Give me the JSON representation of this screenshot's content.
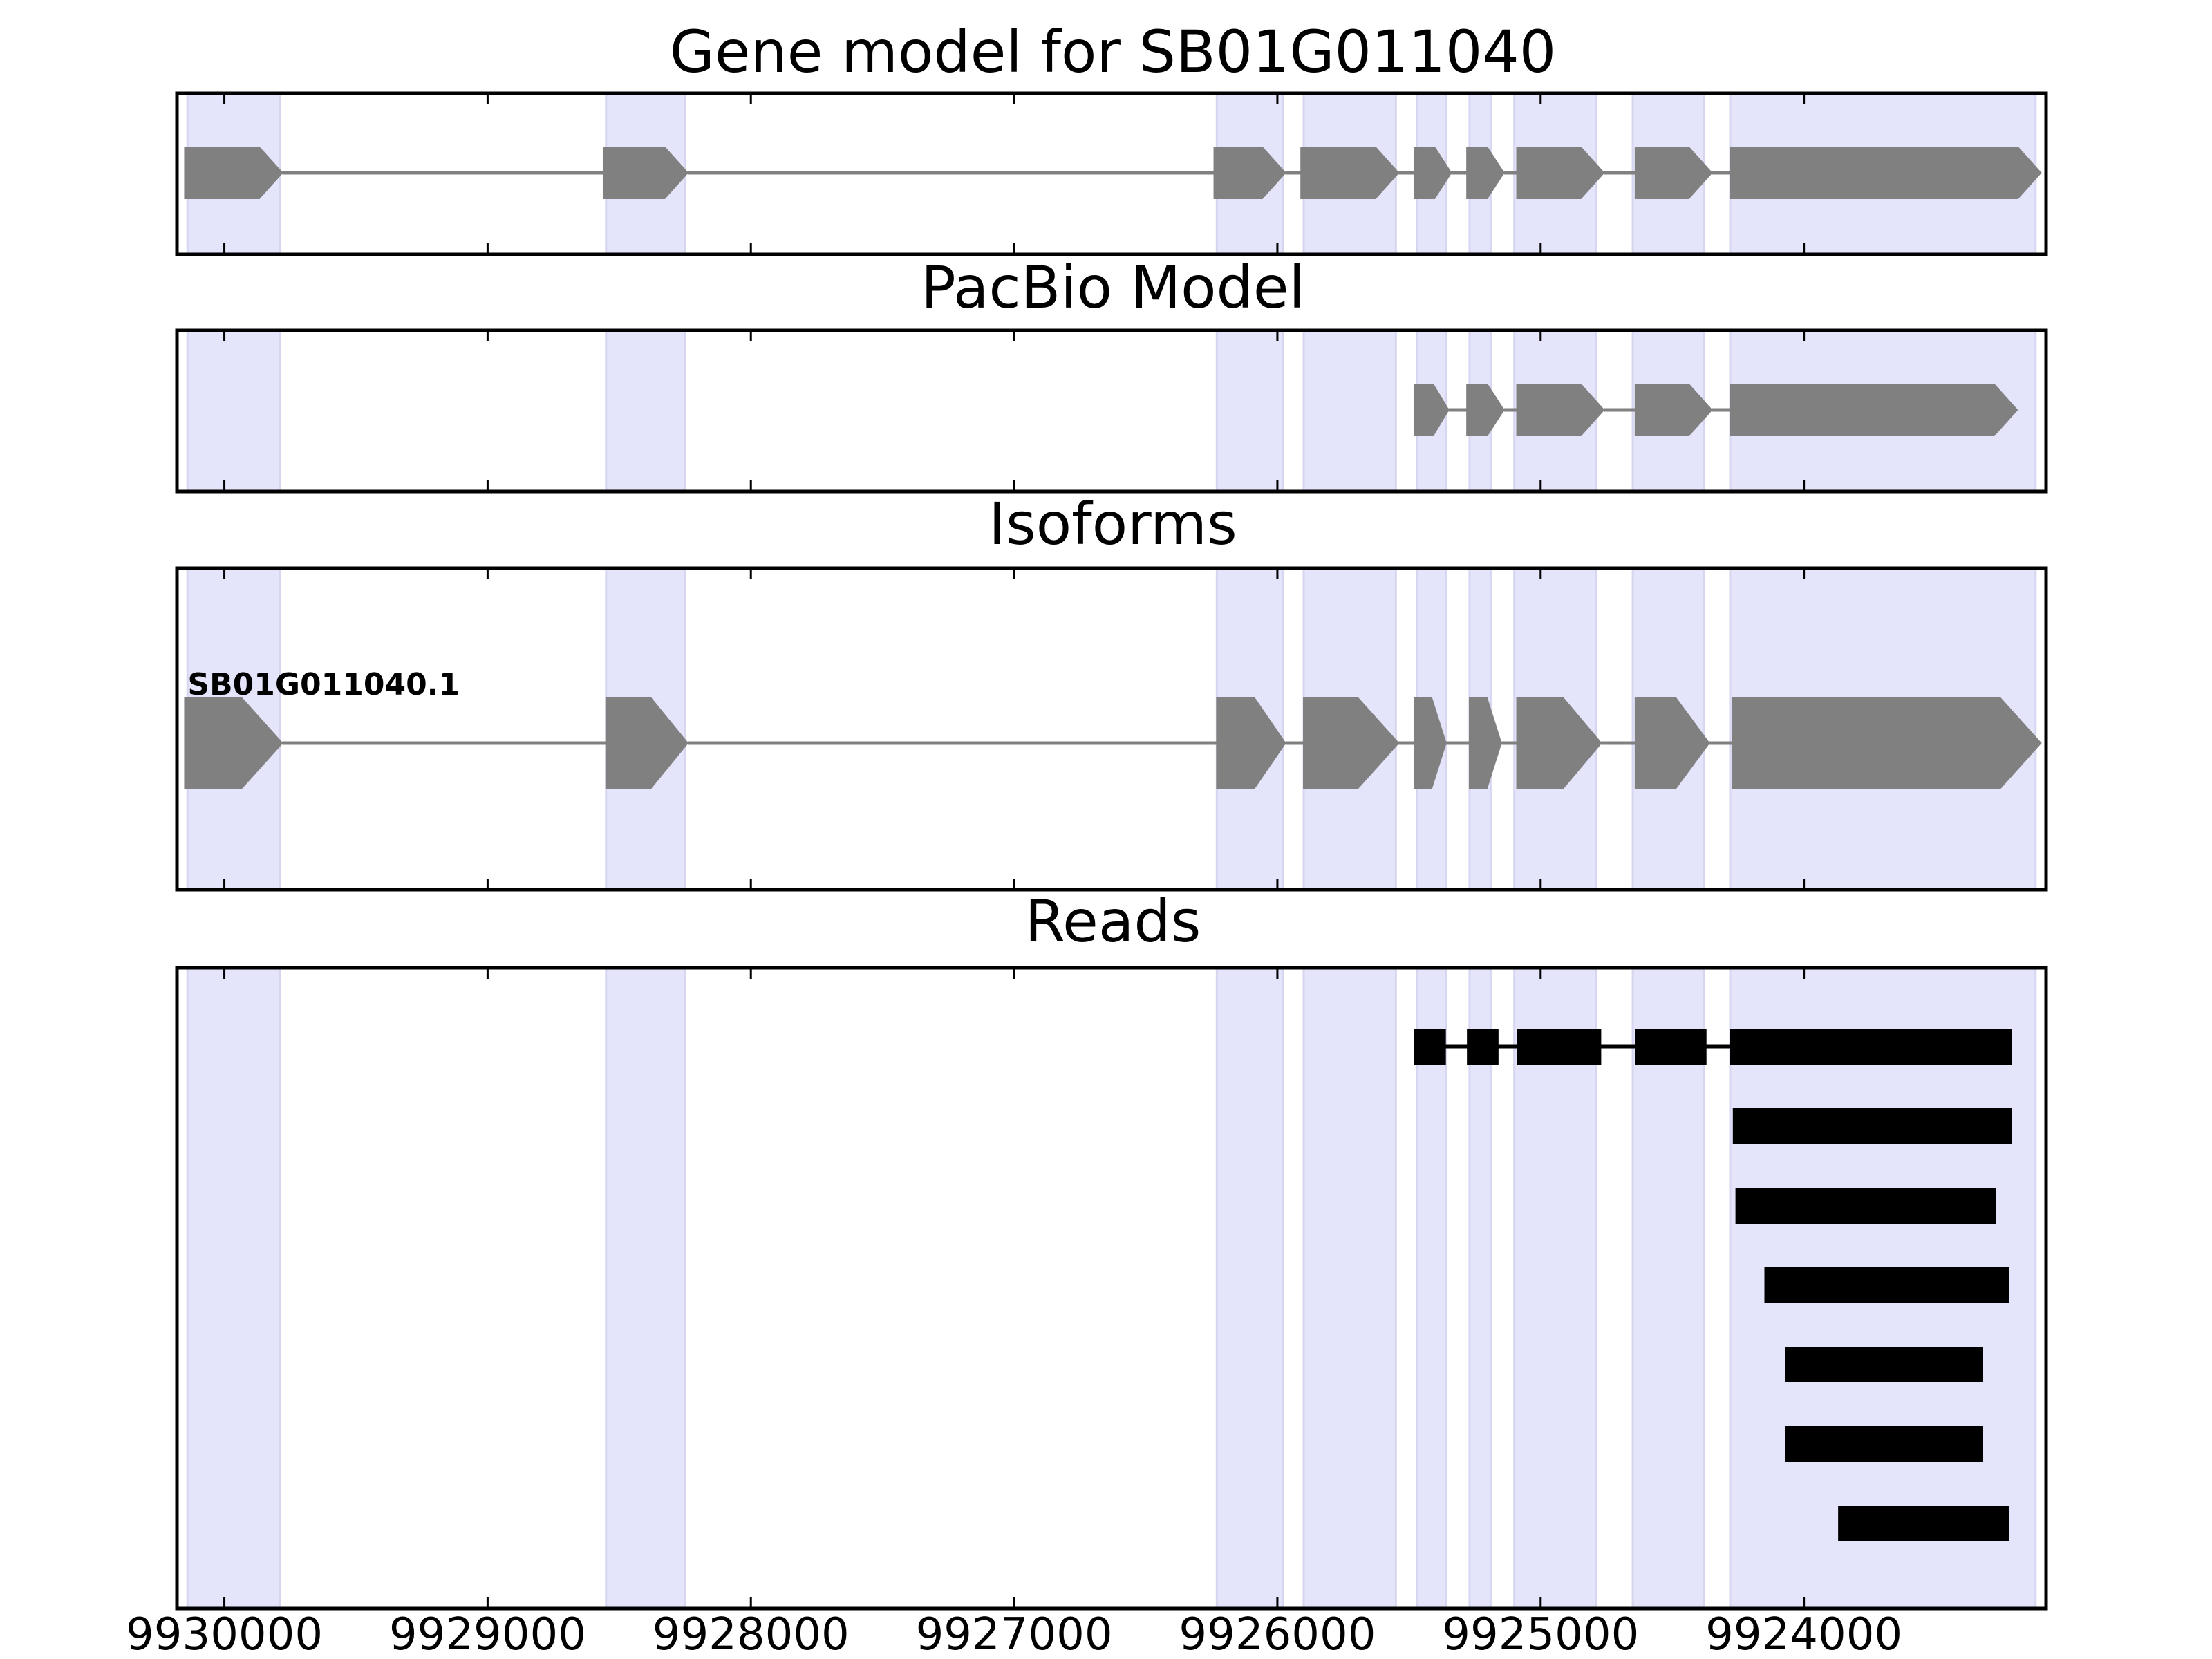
{
  "chart_data": {
    "type": "gene-track",
    "figure_title": "Gene model for SB01G011040",
    "x_axis": {
      "range": [
        9930180,
        9923080
      ],
      "reversed": true,
      "ticks": [
        9930000,
        9929000,
        9928000,
        9927000,
        9926000,
        9925000,
        9924000
      ],
      "tick_labels": [
        "9930000",
        "9929000",
        "9928000",
        "9927000",
        "9926000",
        "9925000",
        "9924000"
      ]
    },
    "highlight_color": "#e4e4fb",
    "highlight_regions": [
      [
        9930140,
        9929790
      ],
      [
        9928550,
        9928250
      ],
      [
        9926230,
        9925980
      ],
      [
        9925900,
        9925550
      ],
      [
        9925470,
        9925360
      ],
      [
        9925270,
        9925190
      ],
      [
        9925100,
        9924790
      ],
      [
        9924650,
        9924380
      ],
      [
        9924280,
        9923120
      ]
    ],
    "panels": [
      {
        "title": "Gene model for SB01G011040",
        "feature_color": "#808080",
        "gene": {
          "exons": [
            [
              9930150,
              9929780
            ],
            [
              9928560,
              9928240
            ],
            [
              9926240,
              9925970
            ],
            [
              9925910,
              9925540
            ],
            [
              9925480,
              9925340
            ],
            [
              9925280,
              9925140
            ],
            [
              9925090,
              9924760
            ],
            [
              9924640,
              9924350
            ],
            [
              9924280,
              9923100
            ]
          ]
        }
      },
      {
        "title": "PacBio Model",
        "feature_color": "#808080",
        "gene": {
          "exons": [
            [
              9925480,
              9925350
            ],
            [
              9925280,
              9925140
            ],
            [
              9925090,
              9924760
            ],
            [
              9924640,
              9924350
            ],
            [
              9924280,
              9923190
            ]
          ]
        }
      },
      {
        "title": "Isoforms",
        "feature_color": "#808080",
        "isoforms": [
          {
            "label": "SB01G011040.1",
            "exons": [
              [
                9930150,
                9929780
              ],
              [
                9928550,
                9928240
              ],
              [
                9926230,
                9925970
              ],
              [
                9925900,
                9925540
              ],
              [
                9925480,
                9925360
              ],
              [
                9925270,
                9925150
              ],
              [
                9925090,
                9924770
              ],
              [
                9924640,
                9924360
              ],
              [
                9924270,
                9923100
              ]
            ]
          }
        ]
      },
      {
        "title": "Reads",
        "feature_color": "#000000",
        "reads": [
          {
            "blocks": [
              [
                9925480,
                9925360
              ],
              [
                9925280,
                9925160
              ],
              [
                9925090,
                9924770
              ],
              [
                9924640,
                9924370
              ],
              [
                9924280,
                9923210
              ]
            ]
          },
          {
            "blocks": [
              [
                9924270,
                9923210
              ]
            ]
          },
          {
            "blocks": [
              [
                9924260,
                9923270
              ]
            ]
          },
          {
            "blocks": [
              [
                9924150,
                9923220
              ]
            ]
          },
          {
            "blocks": [
              [
                9924070,
                9923320
              ]
            ]
          },
          {
            "blocks": [
              [
                9924070,
                9923320
              ]
            ]
          },
          {
            "blocks": [
              [
                9923870,
                9923220
              ]
            ]
          }
        ]
      }
    ]
  }
}
